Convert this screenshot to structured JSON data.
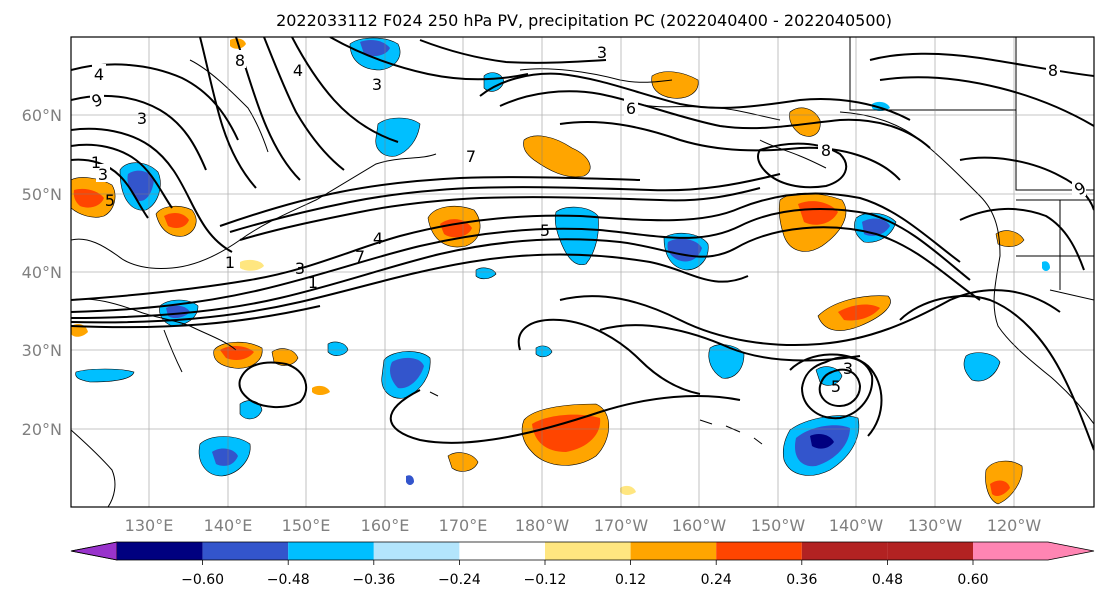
{
  "title": "2022033112 F024 250 hPa PV, precipitation PC (2022040400 - 2022040500)",
  "map": {
    "lat_labels": [
      "60°N",
      "50°N",
      "40°N",
      "30°N",
      "20°N"
    ],
    "lon_labels": [
      "130°E",
      "140°E",
      "150°E",
      "160°E",
      "170°E",
      "180°W",
      "170°W",
      "160°W",
      "150°W",
      "140°W",
      "130°W",
      "120°W"
    ],
    "contour_labels": [
      "4",
      "9",
      "3",
      "1",
      "3",
      "5",
      "8",
      "4",
      "3",
      "1",
      "4",
      "7",
      "3",
      "1",
      "7",
      "5",
      "6",
      "3",
      "8",
      "8",
      "9",
      "3",
      "5"
    ]
  },
  "colorbar": {
    "colors": [
      "#9933cc",
      "#000080",
      "#3355cc",
      "#00bfff",
      "#b3e5fc",
      "#ffffff",
      "#ffe680",
      "#ffa500",
      "#ff4500",
      "#b22222",
      "#ff85b3"
    ],
    "tick_labels": [
      "−0.60",
      "−0.48",
      "−0.36",
      "−0.24",
      "−0.12",
      "0.12",
      "0.24",
      "0.36",
      "0.48",
      "0.60"
    ]
  },
  "chart_data": {
    "type": "map",
    "title": "2022033112 F024 250 hPa PV, precipitation PC (2022040400 - 2022040500)",
    "lat_range": [
      10,
      70
    ],
    "lon_range": [
      120,
      250
    ],
    "grid": true,
    "colorbar_levels": [
      -0.6,
      -0.48,
      -0.36,
      -0.24,
      -0.12,
      0.12,
      0.24,
      0.36,
      0.48,
      0.6
    ]
  }
}
